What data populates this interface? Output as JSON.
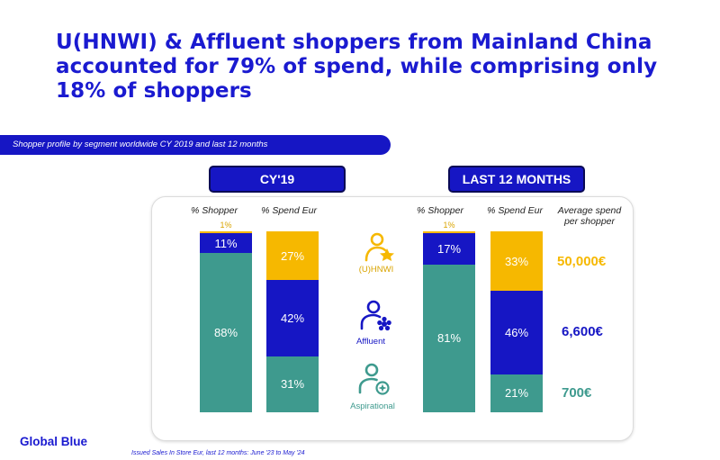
{
  "title": "U(HNWI) & Affluent shoppers from Mainland China accounted for 79% of spend, while comprising only 18% of shoppers",
  "subtitle": "Shopper profile by segment worldwide CY 2019 and last 12 months",
  "footnote": "Issued Sales In Store Eur, last 12 months: June '23 to May '24",
  "logo": "Global Blue",
  "colors": {
    "uhnwi": "#F6B800",
    "affluent": "#1616C4",
    "aspirational": "#3E9A8E",
    "accent": "#1A1AD0"
  },
  "headers": {
    "shopper": "% Shopper",
    "spend": "% Spend Eur",
    "avg_line1": "Average spend",
    "avg_line2": "per shopper"
  },
  "segments": {
    "uhnwi": {
      "label": "(U)HNWI",
      "icon": "star-person-icon",
      "avg_spend": "50,000€"
    },
    "affluent": {
      "label": "Affluent",
      "icon": "flower-person-icon",
      "avg_spend": "6,600€"
    },
    "aspirational": {
      "label": "Aspirational",
      "icon": "sparkle-person-icon",
      "avg_spend": "700€"
    }
  },
  "chart_data": {
    "type": "bar",
    "stacked": true,
    "normalized_percent": true,
    "segment_order_bottom_to_top": [
      "Aspirational",
      "Affluent",
      "(U)HNWI"
    ],
    "groups": [
      {
        "period": "CY'19",
        "bars": [
          {
            "name": "% Shopper",
            "values": {
              "aspirational": 88,
              "affluent": 11,
              "uhnwi": 1
            },
            "labels": {
              "aspirational": "88%",
              "affluent": "11%",
              "uhnwi": "1%"
            }
          },
          {
            "name": "% Spend Eur",
            "values": {
              "aspirational": 31,
              "affluent": 42,
              "uhnwi": 27
            },
            "labels": {
              "aspirational": "31%",
              "affluent": "42%",
              "uhnwi": "27%"
            }
          }
        ]
      },
      {
        "period": "LAST 12 MONTHS",
        "bars": [
          {
            "name": "% Shopper",
            "values": {
              "aspirational": 81,
              "affluent": 17,
              "uhnwi": 1
            },
            "labels": {
              "aspirational": "81%",
              "affluent": "17%",
              "uhnwi": "1%"
            }
          },
          {
            "name": "% Spend Eur",
            "values": {
              "aspirational": 21,
              "affluent": 46,
              "uhnwi": 33
            },
            "labels": {
              "aspirational": "21%",
              "affluent": "46%",
              "uhnwi": "33%"
            }
          }
        ]
      }
    ]
  }
}
